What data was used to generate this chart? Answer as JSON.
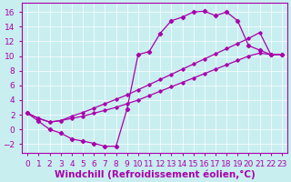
{
  "xlabel": "Windchill (Refroidissement éolien,°C)",
  "bg_color": "#c8eef0",
  "line_color": "#aa00aa",
  "grid_color": "#ffffff",
  "xlim": [
    -0.5,
    23.5
  ],
  "ylim": [
    -3.2,
    17.2
  ],
  "xticks": [
    0,
    1,
    2,
    3,
    4,
    5,
    6,
    7,
    8,
    9,
    10,
    11,
    12,
    13,
    14,
    15,
    16,
    17,
    18,
    19,
    20,
    21,
    22,
    23
  ],
  "yticks": [
    -2,
    0,
    2,
    4,
    6,
    8,
    10,
    12,
    14,
    16
  ],
  "line1_x": [
    0,
    1,
    2,
    3,
    4,
    5,
    6,
    7,
    8,
    9,
    10,
    11,
    12,
    13,
    14,
    15,
    16,
    17,
    18,
    19,
    20,
    21,
    22,
    23
  ],
  "line1_y": [
    2.2,
    1.1,
    -0.0,
    -0.5,
    -1.3,
    -1.6,
    -1.9,
    -2.3,
    -2.3,
    2.8,
    10.2,
    10.6,
    13.1,
    14.8,
    15.3,
    16.0,
    16.1,
    15.5,
    16.0,
    14.8,
    11.4,
    10.8,
    10.2,
    10.2
  ],
  "line2_x": [
    0,
    1,
    2,
    3,
    4,
    5,
    6,
    7,
    8,
    9,
    10,
    11,
    12,
    13,
    14,
    15,
    16,
    17,
    18,
    19,
    20,
    21,
    22,
    23
  ],
  "line2_y": [
    2.2,
    1.5,
    1.0,
    1.2,
    1.5,
    1.8,
    2.2,
    2.6,
    3.0,
    3.5,
    4.0,
    4.6,
    5.2,
    5.8,
    6.4,
    7.0,
    7.6,
    8.2,
    8.8,
    9.4,
    10.0,
    10.4,
    10.2,
    10.2
  ],
  "line3_x": [
    0,
    1,
    2,
    3,
    4,
    5,
    6,
    7,
    8,
    9,
    10,
    11,
    12,
    13,
    14,
    15,
    16,
    17,
    18,
    19,
    20,
    21,
    22,
    23
  ],
  "line3_y": [
    2.2,
    1.5,
    1.0,
    1.2,
    1.8,
    2.3,
    2.9,
    3.5,
    4.1,
    4.7,
    5.4,
    6.1,
    6.8,
    7.5,
    8.2,
    8.9,
    9.6,
    10.3,
    11.0,
    11.7,
    12.4,
    13.2,
    10.2,
    10.2
  ],
  "font_color": "#aa00aa",
  "tick_label_size": 6.5,
  "xlabel_size": 7.5
}
